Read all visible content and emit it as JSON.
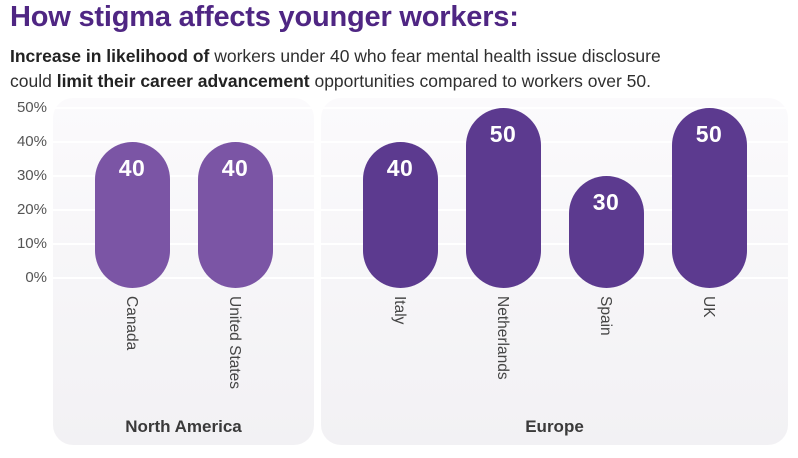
{
  "header": {
    "title": "How stigma affects younger workers:",
    "subtitle": {
      "line1_bold": "Increase in likelihood of",
      "line1_rest": " workers under 40 who fear mental health issue disclosure",
      "line2_start": "could ",
      "line2_bold": "limit their career advancement",
      "line2_rest": " opportunities compared to workers over 50."
    }
  },
  "chart_data": {
    "type": "bar",
    "title": "How stigma affects younger workers:",
    "unit": "%",
    "ylim": [
      0,
      50
    ],
    "grid": true,
    "y_ticks": [
      {
        "value": 50,
        "label": "50%"
      },
      {
        "value": 40,
        "label": "40%"
      },
      {
        "value": 30,
        "label": "30%"
      },
      {
        "value": 20,
        "label": "20%"
      },
      {
        "value": 10,
        "label": "10%"
      },
      {
        "value": 0,
        "label": "0%"
      }
    ],
    "groups": [
      {
        "label": "North America",
        "bar_color": "#7B55A5",
        "categories": [
          "Canada",
          "United States"
        ],
        "values": [
          40,
          40
        ]
      },
      {
        "label": "Europe",
        "bar_color": "#5C3A8F",
        "categories": [
          "Italy",
          "Netherlands",
          "Spain",
          "UK"
        ],
        "values": [
          40,
          50,
          30,
          50
        ]
      }
    ]
  },
  "colors": {
    "title_purple": "#4F2683",
    "north_america_bar": "#7B55A5",
    "europe_bar": "#5C3A8F",
    "panel_background_top": "#fbfafc",
    "panel_background_bottom": "#f2f1f4",
    "gridline": "#ffffff"
  }
}
